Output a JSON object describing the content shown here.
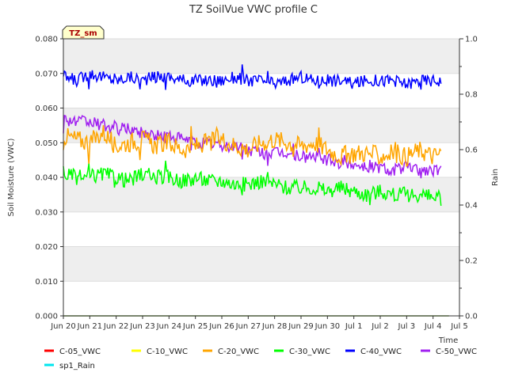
{
  "chart_data": {
    "type": "line",
    "title": "TZ SoilVue VWC profile C",
    "badge": "TZ_sm",
    "xlabel": "Time",
    "ylabel": "Soil Moisture (VWC)",
    "y2label": "Rain",
    "ylim": [
      0,
      0.08
    ],
    "y2lim": [
      0,
      1.0
    ],
    "yticks": [
      "0.000",
      "0.010",
      "0.020",
      "0.030",
      "0.040",
      "0.050",
      "0.060",
      "0.070",
      "0.080"
    ],
    "y2ticks": [
      "0.0",
      "0.2",
      "0.4",
      "0.6",
      "0.8",
      "1.0"
    ],
    "xticks": [
      "Jun 20",
      "Jun 21",
      "Jun 22",
      "Jun 23",
      "Jun 24",
      "Jun 25",
      "Jun 26",
      "Jun 27",
      "Jun 28",
      "Jun 29",
      "Jun 30",
      "Jul 1",
      "Jul 2",
      "Jul 3",
      "Jul 4",
      "Jul 5"
    ],
    "x_days": [
      0,
      1,
      2,
      3,
      4,
      5,
      6,
      7,
      8,
      9,
      10,
      11,
      12,
      13,
      14,
      15
    ],
    "grid": "horizontal bands",
    "legend_position": "bottom",
    "series": [
      {
        "name": "C-05_VWC",
        "color": "#ff0000",
        "x": [
          0.0,
          14.6
        ],
        "values": [
          0.0,
          0.0
        ]
      },
      {
        "name": "C-10_VWC",
        "color": "#ffff00",
        "x": [
          0.0,
          14.6
        ],
        "values": [
          0.0,
          0.0
        ]
      },
      {
        "name": "C-20_VWC",
        "color": "#ffa500",
        "x": [
          0.0,
          0.5,
          1.0,
          1.5,
          2.0,
          2.5,
          3.0,
          3.5,
          4.0,
          4.5,
          5.0,
          5.5,
          6.0,
          6.5,
          7.0,
          7.5,
          8.0,
          8.5,
          9.0,
          9.5,
          10.0,
          10.5,
          11.0,
          11.5,
          12.0,
          12.5,
          13.0,
          13.5,
          14.0,
          14.3
        ],
        "values": [
          0.052,
          0.051,
          0.05,
          0.053,
          0.049,
          0.05,
          0.051,
          0.049,
          0.05,
          0.048,
          0.049,
          0.05,
          0.051,
          0.049,
          0.048,
          0.05,
          0.051,
          0.05,
          0.049,
          0.05,
          0.048,
          0.046,
          0.047,
          0.047,
          0.046,
          0.047,
          0.046,
          0.048,
          0.046,
          0.047
        ]
      },
      {
        "name": "C-30_VWC",
        "color": "#00ff00",
        "x": [
          0.0,
          0.5,
          1.0,
          1.5,
          2.0,
          2.5,
          3.0,
          3.5,
          4.0,
          4.5,
          5.0,
          5.5,
          6.0,
          6.5,
          7.0,
          7.5,
          8.0,
          8.5,
          9.0,
          9.5,
          10.0,
          10.5,
          11.0,
          11.5,
          12.0,
          12.5,
          13.0,
          13.5,
          14.0,
          14.3
        ],
        "values": [
          0.041,
          0.04,
          0.04,
          0.041,
          0.04,
          0.039,
          0.041,
          0.04,
          0.04,
          0.039,
          0.04,
          0.039,
          0.039,
          0.038,
          0.038,
          0.039,
          0.038,
          0.037,
          0.037,
          0.037,
          0.036,
          0.037,
          0.036,
          0.035,
          0.036,
          0.035,
          0.035,
          0.035,
          0.034,
          0.034
        ]
      },
      {
        "name": "C-40_VWC",
        "color": "#0000ff",
        "x": [
          0.0,
          0.5,
          1.0,
          1.5,
          2.0,
          2.5,
          3.0,
          3.5,
          4.0,
          4.5,
          5.0,
          5.5,
          6.0,
          6.5,
          7.0,
          7.5,
          8.0,
          8.5,
          9.0,
          9.5,
          10.0,
          10.5,
          11.0,
          11.5,
          12.0,
          12.5,
          13.0,
          13.5,
          14.0,
          14.3
        ],
        "values": [
          0.069,
          0.068,
          0.07,
          0.069,
          0.068,
          0.069,
          0.068,
          0.069,
          0.069,
          0.068,
          0.068,
          0.068,
          0.068,
          0.069,
          0.068,
          0.068,
          0.067,
          0.068,
          0.069,
          0.068,
          0.068,
          0.068,
          0.067,
          0.068,
          0.068,
          0.068,
          0.067,
          0.068,
          0.068,
          0.068
        ]
      },
      {
        "name": "C-50_VWC",
        "color": "#a020f0",
        "x": [
          0.0,
          0.5,
          1.0,
          1.5,
          2.0,
          2.5,
          3.0,
          3.5,
          4.0,
          4.5,
          5.0,
          5.5,
          6.0,
          6.5,
          7.0,
          7.5,
          8.0,
          8.5,
          9.0,
          9.5,
          10.0,
          10.5,
          11.0,
          11.5,
          12.0,
          12.5,
          13.0,
          13.5,
          14.0,
          14.3
        ],
        "values": [
          0.057,
          0.056,
          0.056,
          0.055,
          0.054,
          0.054,
          0.053,
          0.052,
          0.052,
          0.051,
          0.05,
          0.05,
          0.049,
          0.049,
          0.048,
          0.047,
          0.047,
          0.047,
          0.046,
          0.046,
          0.045,
          0.044,
          0.044,
          0.043,
          0.043,
          0.042,
          0.043,
          0.042,
          0.042,
          0.042
        ]
      },
      {
        "name": "sp1_Rain",
        "color": "#00e5ee",
        "axis": "right",
        "x": [
          0.0,
          14.6
        ],
        "values": [
          0.0,
          0.0
        ]
      }
    ]
  }
}
